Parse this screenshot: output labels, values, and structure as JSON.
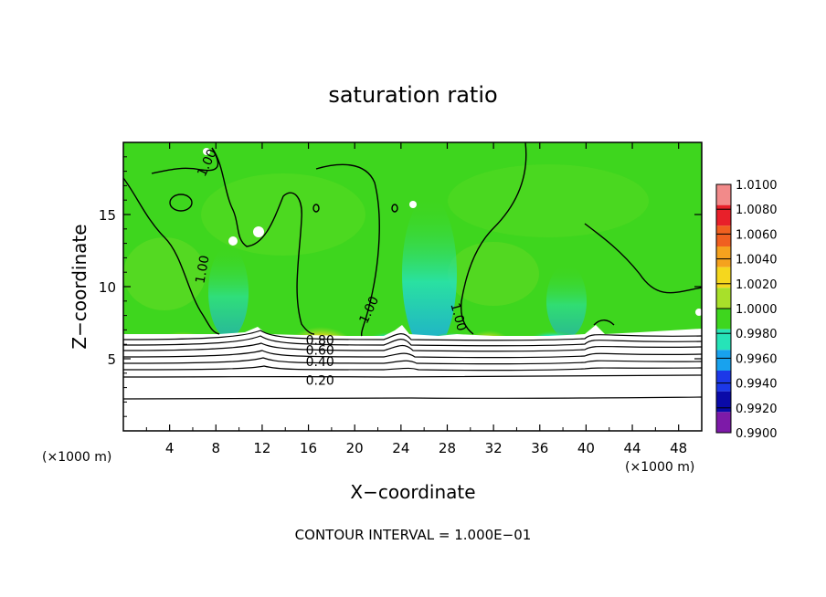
{
  "chart_data": {
    "type": "heatmap",
    "title": "saturation ratio",
    "xlabel": "X−coordinate",
    "ylabel": "Z−coordinate",
    "x_unit_label": "(×1000 m)",
    "xlim": [
      0,
      50
    ],
    "ylim": [
      0,
      20
    ],
    "x_ticks": [
      "4",
      "8",
      "12",
      "16",
      "20",
      "24",
      "28",
      "32",
      "36",
      "40",
      "44",
      "48"
    ],
    "y_ticks": [
      "5",
      "10",
      "15"
    ],
    "colorbar": {
      "min": 0.99,
      "max": 1.01,
      "labels": [
        "1.0100",
        "1.0080",
        "1.0060",
        "1.0040",
        "1.0020",
        "1.0000",
        "0.9980",
        "0.9960",
        "0.9940",
        "0.9920",
        "0.9900"
      ],
      "colors": [
        "#f28a8a",
        "#e8202a",
        "#f06020",
        "#f5a21e",
        "#f5d71e",
        "#a8e02a",
        "#3ed61e",
        "#26e3b8",
        "#18a2ee",
        "#1c38e8",
        "#0a0aa8",
        "#7d1aa8"
      ]
    },
    "contour_labels": [
      {
        "text": "1.00",
        "x": 7.2,
        "z": 18.6,
        "angle": -65
      },
      {
        "text": "1.00",
        "x": 6.8,
        "z": 11.2,
        "angle": -80
      },
      {
        "text": "1.00",
        "x": 21.2,
        "z": 8.4,
        "angle": -65
      },
      {
        "text": "1.00",
        "x": 29.0,
        "z": 7.9,
        "angle": 75
      },
      {
        "text": "0.80",
        "x": 17.0,
        "z": 6.3,
        "angle": 0
      },
      {
        "text": "0.60",
        "x": 17.0,
        "z": 5.6,
        "angle": 0
      },
      {
        "text": "0.40",
        "x": 17.0,
        "z": 4.8,
        "angle": 0
      },
      {
        "text": "0.20",
        "x": 17.0,
        "z": 3.5,
        "angle": 0
      }
    ],
    "contour_interval_label": "CONTOUR INTERVAL = 1.000E−01",
    "grid": false,
    "legend": "right"
  }
}
